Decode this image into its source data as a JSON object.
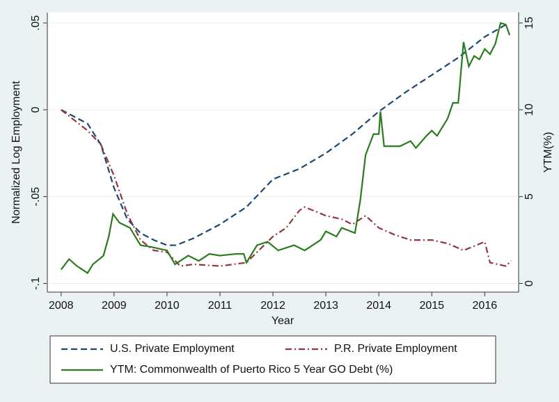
{
  "chart_data": {
    "type": "line",
    "x_label": "Year",
    "y_label": "Normalized Log Employment",
    "y2_label": "YTM(%)",
    "xlim": [
      2007.74,
      2016.64
    ],
    "xticks": [
      2008,
      2009,
      2010,
      2011,
      2012,
      2013,
      2014,
      2015,
      2016
    ],
    "ylim": [
      -0.105,
      0.056
    ],
    "yticks": [
      {
        "value": -0.1,
        "label": "-.1"
      },
      {
        "value": -0.05,
        "label": "-.05"
      },
      0,
      {
        "value": 0.05,
        "label": ".05"
      }
    ],
    "y2lim": [
      -0.5,
      15.6
    ],
    "y2ticks": [
      0,
      5,
      10,
      15
    ],
    "grid": true,
    "series": [
      {
        "name": "U.S. Private Employment",
        "color": "#1a476f",
        "style": "dash",
        "x": [
          2008,
          2008.25,
          2008.5,
          2008.75,
          2009,
          2009.25,
          2009.5,
          2009.75,
          2010,
          2010.17,
          2010.5,
          2011,
          2011.5,
          2012,
          2012.5,
          2013,
          2013.5,
          2014,
          2014.5,
          2015,
          2015.5,
          2016,
          2016.4
        ],
        "values": [
          0,
          -0.004,
          -0.008,
          -0.02,
          -0.045,
          -0.063,
          -0.071,
          -0.075,
          -0.078,
          -0.078,
          -0.074,
          -0.066,
          -0.056,
          -0.04,
          -0.034,
          -0.025,
          -0.014,
          -0.001,
          0.01,
          0.02,
          0.03,
          0.042,
          0.049
        ]
      },
      {
        "name": "P.R. Private Employment",
        "color": "#90353b",
        "style": "dashdot",
        "x": [
          2008,
          2008.25,
          2008.5,
          2008.75,
          2009,
          2009.25,
          2009.5,
          2009.75,
          2010,
          2010.25,
          2010.5,
          2011,
          2011.5,
          2012,
          2012.25,
          2012.5,
          2012.6,
          2013,
          2013.3,
          2013.5,
          2013.75,
          2014,
          2014.3,
          2014.6,
          2015,
          2015.3,
          2015.6,
          2016,
          2016.1,
          2016.4,
          2016.5
        ],
        "values": [
          0,
          -0.006,
          -0.012,
          -0.02,
          -0.038,
          -0.06,
          -0.075,
          -0.081,
          -0.082,
          -0.09,
          -0.089,
          -0.09,
          -0.088,
          -0.073,
          -0.068,
          -0.058,
          -0.056,
          -0.061,
          -0.063,
          -0.066,
          -0.061,
          -0.068,
          -0.072,
          -0.075,
          -0.075,
          -0.077,
          -0.081,
          -0.076,
          -0.088,
          -0.09,
          -0.087
        ]
      },
      {
        "name": "YTM: Commonwealth of Puerto Rico 5 Year GO Debt (%)",
        "color": "#2a7a1e",
        "style": "solid",
        "axis": "y2",
        "x": [
          2008,
          2008.15,
          2008.3,
          2008.5,
          2008.6,
          2008.8,
          2008.9,
          2008.98,
          2009.1,
          2009.3,
          2009.5,
          2009.7,
          2010,
          2010.15,
          2010.4,
          2010.6,
          2010.8,
          2011,
          2011.3,
          2011.45,
          2011.5,
          2011.7,
          2011.9,
          2012.1,
          2012.4,
          2012.6,
          2012.9,
          2013,
          2013.2,
          2013.3,
          2013.55,
          2013.65,
          2013.75,
          2013.9,
          2014,
          2014.03,
          2014.1,
          2014.4,
          2014.6,
          2014.7,
          2014.9,
          2015,
          2015.1,
          2015.3,
          2015.4,
          2015.5,
          2015.6,
          2015.7,
          2015.8,
          2015.9,
          2016,
          2016.1,
          2016.2,
          2016.3,
          2016.4,
          2016.47
        ],
        "values": [
          0.8,
          1.4,
          1.0,
          0.6,
          1.1,
          1.6,
          2.7,
          4.0,
          3.5,
          3.2,
          2.2,
          2.1,
          1.9,
          1.1,
          1.6,
          1.3,
          1.7,
          1.6,
          1.7,
          1.7,
          1.2,
          2.2,
          2.4,
          1.9,
          2.2,
          1.9,
          2.5,
          3.0,
          2.7,
          3.2,
          2.9,
          4.8,
          7.4,
          8.6,
          8.6,
          9.9,
          7.9,
          7.9,
          8.2,
          7.8,
          8.5,
          8.8,
          8.5,
          9.5,
          10.4,
          10.4,
          13.9,
          12.5,
          13.1,
          12.9,
          13.5,
          13.2,
          13.8,
          15.0,
          14.9,
          14.3
        ]
      }
    ]
  }
}
